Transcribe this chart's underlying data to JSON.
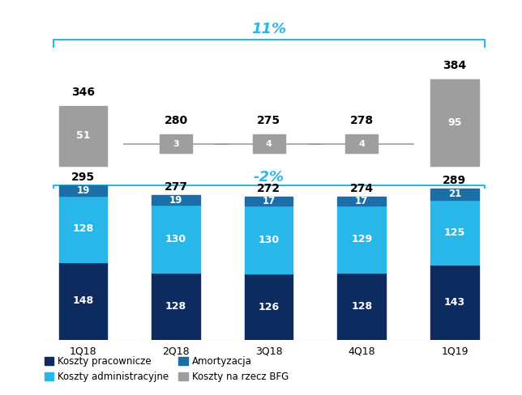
{
  "categories": [
    "1Q18",
    "2Q18",
    "3Q18",
    "4Q18",
    "1Q19"
  ],
  "top_totals": [
    346,
    280,
    275,
    278,
    384
  ],
  "bfg_values": [
    51,
    3,
    4,
    4,
    95
  ],
  "bottom_totals": [
    295,
    277,
    272,
    274,
    289
  ],
  "pracownicze": [
    148,
    128,
    126,
    128,
    143
  ],
  "administracyjne": [
    128,
    130,
    130,
    129,
    125
  ],
  "amortyzacja": [
    19,
    19,
    17,
    17,
    21
  ],
  "color_pracownicze": "#0d2b5e",
  "color_administracyjne": "#29b6e8",
  "color_amortyzacja": "#1a6fa8",
  "color_bfg": "#9e9e9e",
  "color_bracket": "#29b6e8",
  "label_pracownicze": "Koszty pracownicze",
  "label_administracyjne": "Koszty administracyjne",
  "label_amortyzacja": "Amortyzacja",
  "label_bfg": "Koszty na rzecz BFG",
  "top_bracket_label": "11%",
  "bottom_bracket_label": "-2%",
  "background_color": "#ffffff",
  "bfg_large_threshold": 20
}
